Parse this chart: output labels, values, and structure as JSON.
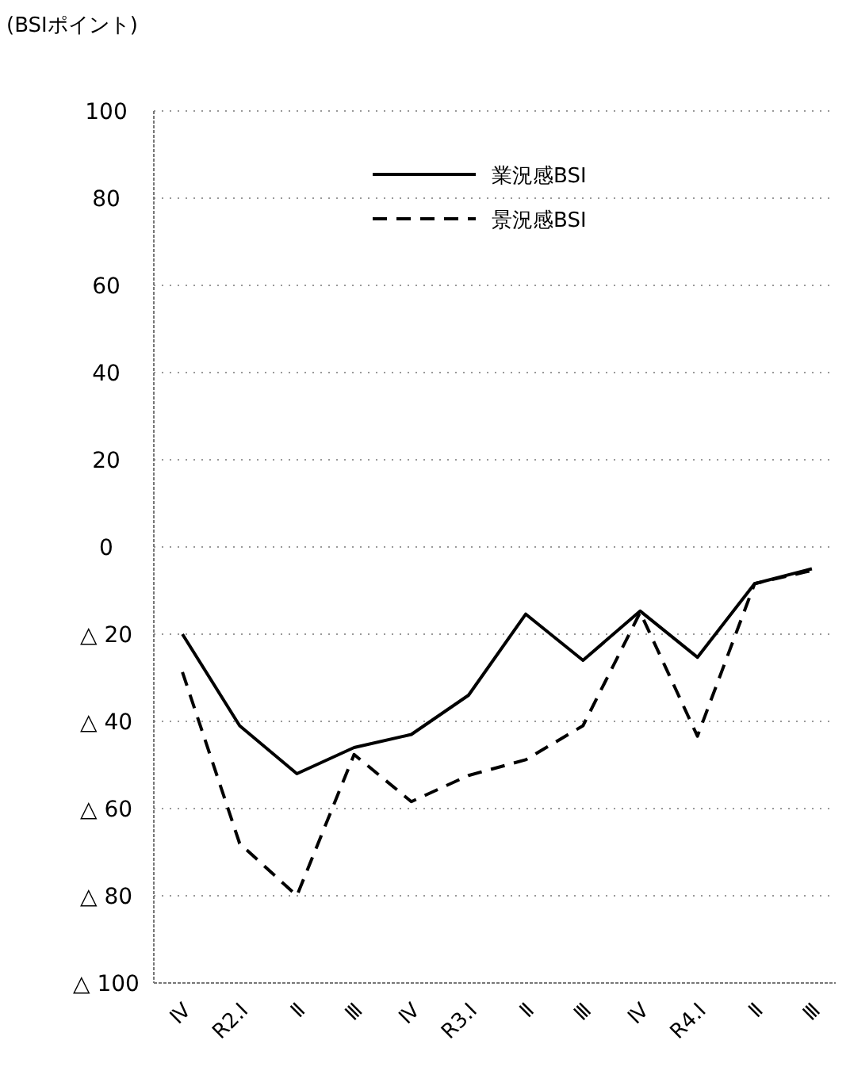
{
  "chart_data": {
    "type": "line",
    "ylabel": "(BSIポイント)",
    "categories": [
      "Ⅳ",
      "R2.Ⅰ",
      "Ⅱ",
      "Ⅲ",
      "Ⅳ",
      "R3.Ⅰ",
      "Ⅱ",
      "Ⅲ",
      "Ⅳ",
      "R4.Ⅰ",
      "Ⅱ",
      "Ⅲ"
    ],
    "series": [
      {
        "name": "業況感BSI",
        "color": "#000000",
        "line_style": "solid",
        "values": [
          -20,
          -41,
          -52,
          -46,
          -43,
          -34,
          -15.4,
          -26,
          -14.7,
          -25.3,
          -8.4,
          -5
        ]
      },
      {
        "name": "景況感BSI",
        "color": "#000000",
        "line_style": "dashed",
        "values": [
          -28.7,
          -68,
          -80,
          -47.6,
          -58.4,
          -52.4,
          -48.8,
          -41,
          -15,
          -43.4,
          -8.4,
          -5.4
        ]
      }
    ],
    "ylim": [
      -100,
      100
    ],
    "yticks": [
      100,
      80,
      60,
      40,
      20,
      0,
      {
        "value": -20,
        "label": "△ 20"
      },
      {
        "value": -40,
        "label": "△ 40"
      },
      {
        "value": -60,
        "label": "△ 60"
      },
      {
        "value": -80,
        "label": "△ 80"
      },
      {
        "value": -100,
        "label": "△ 100"
      }
    ],
    "grid": "y",
    "legend": "top",
    "marker": "none"
  }
}
